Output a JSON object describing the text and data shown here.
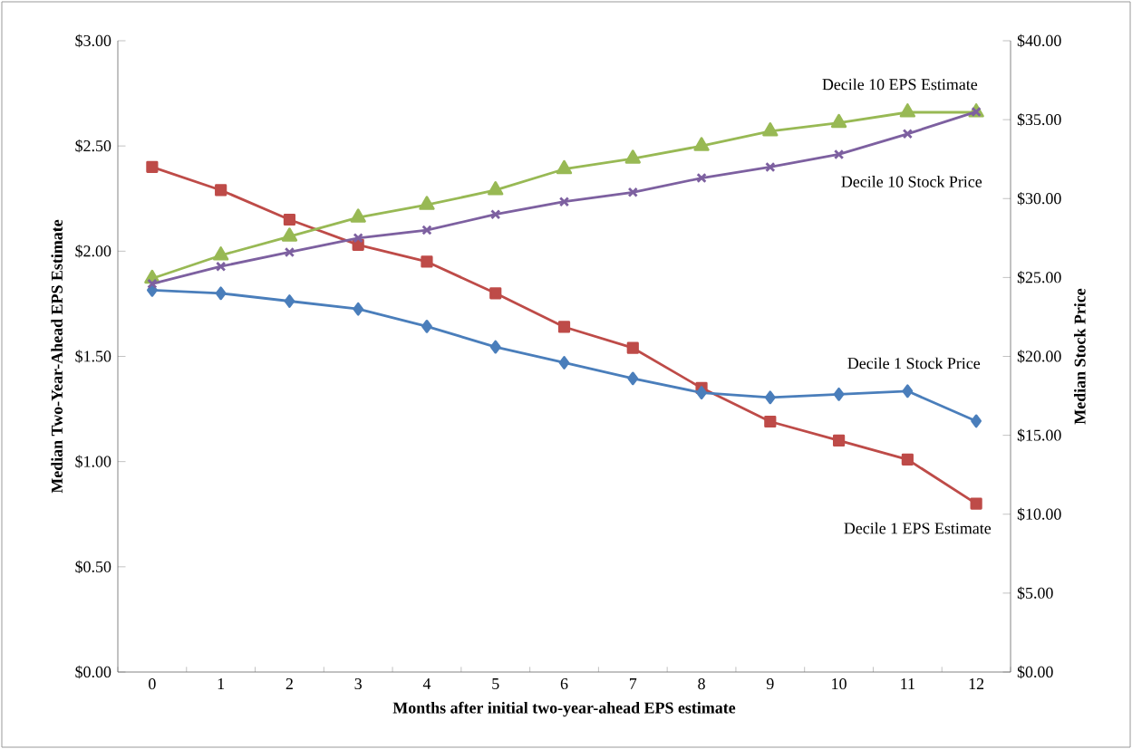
{
  "chart_data": {
    "type": "line",
    "xlabel": "Months after initial two-year-ahead EPS estimate",
    "ylabel": "Median Two-Year-Ahead EPS Estimate",
    "y2label": "Median Stock Price",
    "categories": [
      "0",
      "1",
      "2",
      "3",
      "4",
      "5",
      "6",
      "7",
      "8",
      "9",
      "10",
      "11",
      "12"
    ],
    "ylim": [
      0,
      3
    ],
    "yticks": [
      {
        "value": 0,
        "label": "$0.00"
      },
      {
        "value": 0.5,
        "label": "$0.50"
      },
      {
        "value": 1,
        "label": "$1.00"
      },
      {
        "value": 1.5,
        "label": "$1.50"
      },
      {
        "value": 2,
        "label": "$2.00"
      },
      {
        "value": 2.5,
        "label": "$2.50"
      },
      {
        "value": 3,
        "label": "$3.00"
      }
    ],
    "y2lim": [
      0,
      40
    ],
    "y2ticks": [
      {
        "value": 0,
        "label": "$0.00"
      },
      {
        "value": 5,
        "label": "$5.00"
      },
      {
        "value": 10,
        "label": "$10.00"
      },
      {
        "value": 15,
        "label": "$15.00"
      },
      {
        "value": 20,
        "label": "$20.00"
      },
      {
        "value": 25,
        "label": "$25.00"
      },
      {
        "value": 30,
        "label": "$30.00"
      },
      {
        "value": 35,
        "label": "$35.00"
      },
      {
        "value": 40,
        "label": "$40.00"
      }
    ],
    "series": [
      {
        "name": "Decile 1 Stock Price",
        "color": "#4a7ebb",
        "marker": "diamond",
        "axis": "y2",
        "values": [
          24.2,
          24.0,
          23.5,
          23.0,
          21.9,
          20.6,
          19.6,
          18.6,
          17.7,
          17.4,
          17.6,
          17.8,
          15.9
        ]
      },
      {
        "name": "Decile 1 EPS Estimate",
        "color": "#be4b48",
        "marker": "square",
        "axis": "y",
        "values": [
          2.4,
          2.29,
          2.15,
          2.03,
          1.95,
          1.8,
          1.64,
          1.54,
          1.35,
          1.19,
          1.1,
          1.01,
          0.8
        ]
      },
      {
        "name": "Decile 10 EPS Estimate",
        "color": "#98b954",
        "marker": "triangle",
        "axis": "y",
        "values": [
          1.87,
          1.98,
          2.07,
          2.16,
          2.22,
          2.29,
          2.39,
          2.44,
          2.5,
          2.57,
          2.61,
          2.66,
          2.66
        ]
      },
      {
        "name": "Decile 10 Stock Price",
        "color": "#7d60a0",
        "marker": "cross",
        "axis": "y2",
        "values": [
          24.6,
          25.7,
          26.6,
          27.5,
          28.0,
          29.0,
          29.8,
          30.4,
          31.3,
          32.0,
          32.8,
          34.1,
          35.5
        ]
      }
    ]
  }
}
